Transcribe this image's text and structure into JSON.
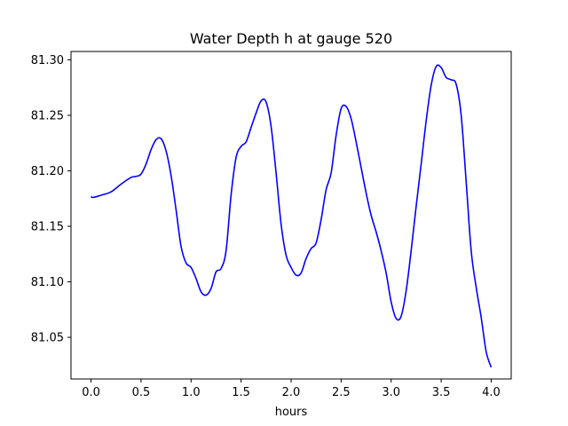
{
  "chart_data": {
    "type": "line",
    "title": "Water Depth h at gauge 520",
    "xlabel": "hours",
    "ylabel": "",
    "xlim": [
      -0.2,
      4.2
    ],
    "ylim": [
      81.0125,
      81.3075
    ],
    "xticks": [
      0.0,
      0.5,
      1.0,
      1.5,
      2.0,
      2.5,
      3.0,
      3.5,
      4.0
    ],
    "xtick_labels": [
      "0.0",
      "0.5",
      "1.0",
      "1.5",
      "2.0",
      "2.5",
      "3.0",
      "3.5",
      "4.0"
    ],
    "yticks": [
      81.05,
      81.1,
      81.15,
      81.2,
      81.25,
      81.3
    ],
    "ytick_labels": [
      "81.05",
      "81.10",
      "81.15",
      "81.20",
      "81.25",
      "81.30"
    ],
    "grid": false,
    "colors": {
      "line": "#0000ff",
      "axes": "#000000",
      "background": "#ffffff"
    },
    "series": [
      {
        "x": [
          0.0,
          0.02,
          0.1,
          0.2,
          0.3,
          0.4,
          0.45,
          0.5,
          0.55,
          0.6,
          0.65,
          0.7,
          0.75,
          0.8,
          0.85,
          0.9,
          0.95,
          1.0,
          1.05,
          1.1,
          1.15,
          1.2,
          1.25,
          1.3,
          1.35,
          1.4,
          1.45,
          1.5,
          1.55,
          1.6,
          1.65,
          1.7,
          1.75,
          1.8,
          1.85,
          1.9,
          1.95,
          2.0,
          2.05,
          2.1,
          2.15,
          2.2,
          2.25,
          2.3,
          2.35,
          2.4,
          2.45,
          2.5,
          2.55,
          2.6,
          2.65,
          2.7,
          2.75,
          2.8,
          2.85,
          2.9,
          2.95,
          3.0,
          3.05,
          3.1,
          3.15,
          3.2,
          3.25,
          3.3,
          3.35,
          3.4,
          3.45,
          3.5,
          3.55,
          3.6,
          3.65,
          3.7,
          3.75,
          3.8,
          3.85,
          3.9,
          3.95,
          4.0
        ],
        "values": [
          81.177,
          81.176,
          81.178,
          81.181,
          81.188,
          81.194,
          81.195,
          81.197,
          81.206,
          81.219,
          81.228,
          81.229,
          81.218,
          81.196,
          81.165,
          81.132,
          81.117,
          81.113,
          81.103,
          81.091,
          81.088,
          81.094,
          81.109,
          81.112,
          81.128,
          81.178,
          81.212,
          81.222,
          81.226,
          81.239,
          81.252,
          81.263,
          81.262,
          81.24,
          81.198,
          81.152,
          81.124,
          81.113,
          81.106,
          81.108,
          81.121,
          81.13,
          81.135,
          81.156,
          81.183,
          81.198,
          81.232,
          81.256,
          81.258,
          81.247,
          81.226,
          81.203,
          81.18,
          81.16,
          81.145,
          81.128,
          81.108,
          81.082,
          81.067,
          81.069,
          81.092,
          81.128,
          81.168,
          81.206,
          81.245,
          81.277,
          81.294,
          81.293,
          81.284,
          81.282,
          81.278,
          81.25,
          81.19,
          81.128,
          81.095,
          81.068,
          81.037,
          81.023
        ]
      }
    ]
  }
}
